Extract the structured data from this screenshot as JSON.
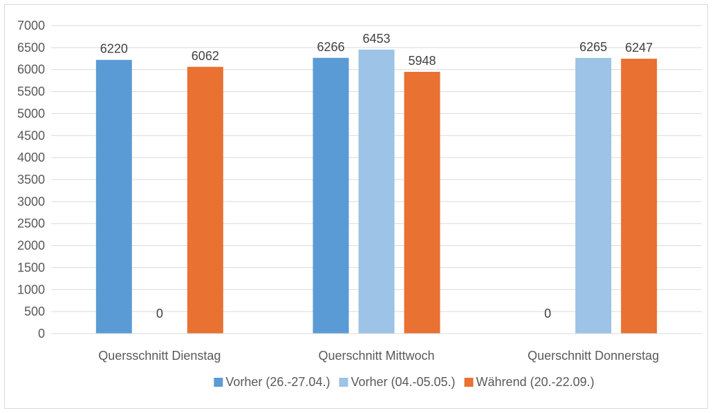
{
  "chart_data": {
    "type": "bar",
    "categories": [
      "Quersschnitt Dienstag",
      "Querschnitt Mittwoch",
      "Querschnitt Donnerstag"
    ],
    "series": [
      {
        "name": "Vorher (26.-27.04.)",
        "color": "#5b9bd5",
        "values": [
          6220,
          6266,
          0
        ]
      },
      {
        "name": "Vorher (04.-05.05.)",
        "color": "#9dc3e6",
        "values": [
          0,
          6453,
          6265
        ]
      },
      {
        "name": "Während (20.-22.09.)",
        "color": "#e97132",
        "values": [
          6062,
          5948,
          6247
        ]
      }
    ],
    "ylim": [
      0,
      7000
    ],
    "yticks": [
      0,
      500,
      1000,
      1500,
      2000,
      2500,
      3000,
      3500,
      4000,
      4500,
      5000,
      5500,
      6000,
      6500,
      7000
    ],
    "grid": "horizontal",
    "legend_position": "bottom",
    "data_labels": true,
    "title": "",
    "xlabel": "",
    "ylabel": ""
  }
}
